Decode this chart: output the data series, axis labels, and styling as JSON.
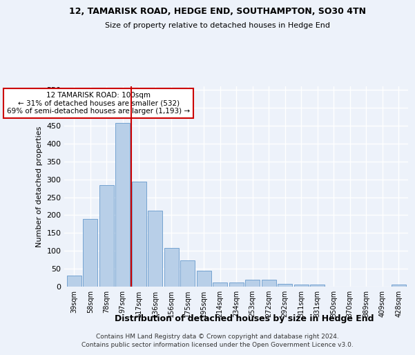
{
  "title1": "12, TAMARISK ROAD, HEDGE END, SOUTHAMPTON, SO30 4TN",
  "title2": "Size of property relative to detached houses in Hedge End",
  "xlabel": "Distribution of detached houses by size in Hedge End",
  "ylabel": "Number of detached properties",
  "categories": [
    "39sqm",
    "58sqm",
    "78sqm",
    "97sqm",
    "117sqm",
    "136sqm",
    "156sqm",
    "175sqm",
    "195sqm",
    "214sqm",
    "234sqm",
    "253sqm",
    "272sqm",
    "292sqm",
    "311sqm",
    "331sqm",
    "350sqm",
    "370sqm",
    "389sqm",
    "409sqm",
    "428sqm"
  ],
  "values": [
    30,
    190,
    283,
    457,
    293,
    213,
    108,
    74,
    45,
    12,
    12,
    20,
    20,
    8,
    5,
    5,
    0,
    0,
    0,
    0,
    5
  ],
  "bar_color": "#b8cfe8",
  "bar_edge_color": "#6699cc",
  "vline_x": 3.5,
  "vline_color": "#cc0000",
  "annotation_line1": "12 TAMARISK ROAD: 100sqm",
  "annotation_line2": "← 31% of detached houses are smaller (532)",
  "annotation_line3": "69% of semi-detached houses are larger (1,193) →",
  "annotation_box_color": "#ffffff",
  "annotation_box_edge": "#cc0000",
  "ylim": [
    0,
    560
  ],
  "yticks": [
    0,
    50,
    100,
    150,
    200,
    250,
    300,
    350,
    400,
    450,
    500,
    550
  ],
  "footer1": "Contains HM Land Registry data © Crown copyright and database right 2024.",
  "footer2": "Contains public sector information licensed under the Open Government Licence v3.0.",
  "bg_color": "#edf2fa",
  "grid_color": "#ffffff",
  "title_fontsize": 9,
  "subtitle_fontsize": 8
}
